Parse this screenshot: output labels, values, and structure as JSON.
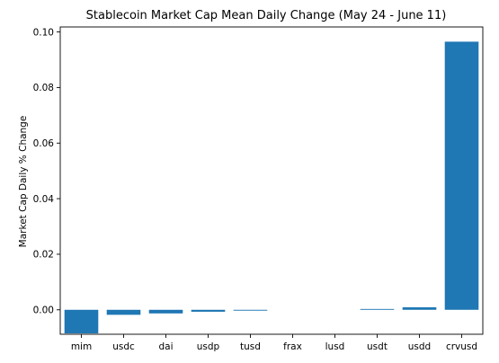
{
  "chart_data": {
    "type": "bar",
    "title": "Stablecoin Market Cap Mean Daily Change (May 24 - June 11)",
    "xlabel": "",
    "ylabel": "Market Cap Daily % Change",
    "categories": [
      "mim",
      "usdc",
      "dai",
      "usdp",
      "tusd",
      "frax",
      "lusd",
      "usdt",
      "usdd",
      "crvusd"
    ],
    "values": [
      -0.0085,
      -0.0018,
      -0.0013,
      -0.0007,
      -0.0003,
      0.0,
      0.0,
      0.0003,
      0.0009,
      0.0965
    ],
    "ylim": [
      -0.0088,
      0.1018
    ],
    "yticks": [
      0.0,
      0.02,
      0.04,
      0.06,
      0.08,
      0.1
    ],
    "ytick_labels": [
      "0.00",
      "0.02",
      "0.04",
      "0.06",
      "0.08",
      "0.10"
    ],
    "grid": false,
    "legend": "none",
    "bar_color": "#1f77b4"
  }
}
